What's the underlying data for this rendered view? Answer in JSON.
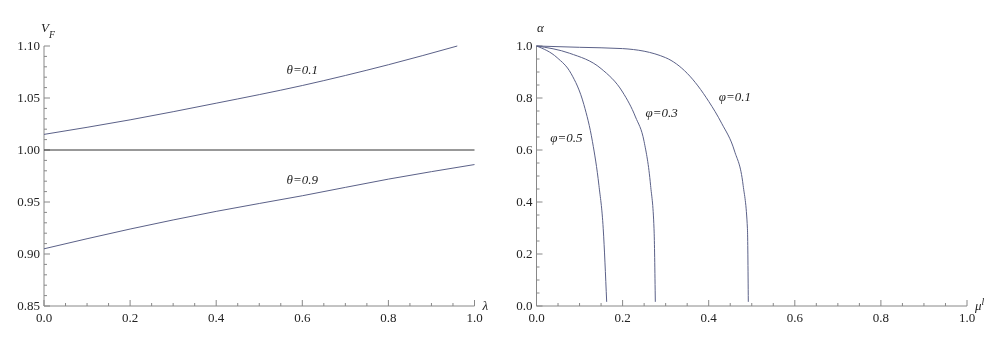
{
  "chart_data": [
    {
      "type": "line",
      "xlabel": "λ",
      "ylabel": "V$_{F}$",
      "xlim": [
        0,
        1
      ],
      "ylim": [
        0.85,
        1.1
      ],
      "xticks": [
        {
          "value": 0,
          "label": "0.0"
        },
        {
          "value": 0.05,
          "label": null
        },
        {
          "value": 0.1,
          "label": null
        },
        {
          "value": 0.15,
          "label": null
        },
        {
          "value": 0.2,
          "label": "0.2"
        },
        {
          "value": 0.25,
          "label": null
        },
        {
          "value": 0.3,
          "label": null
        },
        {
          "value": 0.35,
          "label": null
        },
        {
          "value": 0.4,
          "label": "0.4"
        },
        {
          "value": 0.45,
          "label": null
        },
        {
          "value": 0.5,
          "label": null
        },
        {
          "value": 0.55,
          "label": null
        },
        {
          "value": 0.6,
          "label": "0.6"
        },
        {
          "value": 0.65,
          "label": null
        },
        {
          "value": 0.7,
          "label": null
        },
        {
          "value": 0.75,
          "label": null
        },
        {
          "value": 0.8,
          "label": "0.8"
        },
        {
          "value": 0.85,
          "label": null
        },
        {
          "value": 0.9,
          "label": null
        },
        {
          "value": 0.95,
          "label": null
        },
        {
          "value": 1,
          "label": "1.0"
        }
      ],
      "yticks": [
        {
          "value": 0.85,
          "label": "0.85"
        },
        {
          "value": 0.86,
          "label": null
        },
        {
          "value": 0.87,
          "label": null
        },
        {
          "value": 0.88,
          "label": null
        },
        {
          "value": 0.89,
          "label": null
        },
        {
          "value": 0.9,
          "label": "0.90"
        },
        {
          "value": 0.91,
          "label": null
        },
        {
          "value": 0.92,
          "label": null
        },
        {
          "value": 0.93,
          "label": null
        },
        {
          "value": 0.94,
          "label": null
        },
        {
          "value": 0.95,
          "label": "0.95"
        },
        {
          "value": 0.96,
          "label": null
        },
        {
          "value": 0.97,
          "label": null
        },
        {
          "value": 0.98,
          "label": null
        },
        {
          "value": 0.99,
          "label": null
        },
        {
          "value": 1,
          "label": "1.00"
        },
        {
          "value": 1.01,
          "label": null
        },
        {
          "value": 1.02,
          "label": null
        },
        {
          "value": 1.03,
          "label": null
        },
        {
          "value": 1.04,
          "label": null
        },
        {
          "value": 1.05,
          "label": "1.05"
        },
        {
          "value": 1.06,
          "label": null
        },
        {
          "value": 1.07,
          "label": null
        },
        {
          "value": 1.08,
          "label": null
        },
        {
          "value": 1.09,
          "label": null
        },
        {
          "value": 1.1,
          "label": "1.10"
        }
      ],
      "grid": false,
      "legend": false,
      "marker": "none",
      "line_style": "solid",
      "series": [
        {
          "name": "θ=0.1",
          "color": "#5b6188",
          "x": [
            0,
            0.2,
            0.4,
            0.6,
            0.8,
            0.96
          ],
          "values": [
            1.015,
            1.029,
            1.045,
            1.062,
            1.082,
            1.1
          ]
        },
        {
          "color": "#333333",
          "x": [
            0,
            1
          ],
          "values": [
            1,
            1
          ]
        },
        {
          "name": "θ=0.9",
          "color": "#5b6188",
          "x": [
            0,
            0.2,
            0.4,
            0.6,
            0.8,
            1
          ],
          "values": [
            0.905,
            0.924,
            0.941,
            0.956,
            0.972,
            0.986
          ]
        }
      ]
    },
    {
      "type": "line",
      "xlabel": "μ$^{l}$",
      "ylabel": "α",
      "xlim": [
        0,
        1
      ],
      "ylim": [
        0,
        1
      ],
      "xticks": [
        {
          "value": 0,
          "label": "0.0"
        },
        {
          "value": 0.05,
          "label": null
        },
        {
          "value": 0.1,
          "label": null
        },
        {
          "value": 0.15,
          "label": null
        },
        {
          "value": 0.2,
          "label": "0.2"
        },
        {
          "value": 0.25,
          "label": null
        },
        {
          "value": 0.3,
          "label": null
        },
        {
          "value": 0.35,
          "label": null
        },
        {
          "value": 0.4,
          "label": "0.4"
        },
        {
          "value": 0.45,
          "label": null
        },
        {
          "value": 0.5,
          "label": null
        },
        {
          "value": 0.55,
          "label": null
        },
        {
          "value": 0.6,
          "label": "0.6"
        },
        {
          "value": 0.65,
          "label": null
        },
        {
          "value": 0.7,
          "label": null
        },
        {
          "value": 0.75,
          "label": null
        },
        {
          "value": 0.8,
          "label": "0.8"
        },
        {
          "value": 0.85,
          "label": null
        },
        {
          "value": 0.9,
          "label": null
        },
        {
          "value": 0.95,
          "label": null
        },
        {
          "value": 1,
          "label": "1.0"
        }
      ],
      "yticks": [
        {
          "value": 0,
          "label": "0.0"
        },
        {
          "value": 0.05,
          "label": null
        },
        {
          "value": 0.1,
          "label": null
        },
        {
          "value": 0.15,
          "label": null
        },
        {
          "value": 0.2,
          "label": "0.2"
        },
        {
          "value": 0.25,
          "label": null
        },
        {
          "value": 0.3,
          "label": null
        },
        {
          "value": 0.35,
          "label": null
        },
        {
          "value": 0.4,
          "label": "0.4"
        },
        {
          "value": 0.45,
          "label": null
        },
        {
          "value": 0.5,
          "label": null
        },
        {
          "value": 0.55,
          "label": null
        },
        {
          "value": 0.6,
          "label": "0.6"
        },
        {
          "value": 0.65,
          "label": null
        },
        {
          "value": 0.7,
          "label": null
        },
        {
          "value": 0.75,
          "label": null
        },
        {
          "value": 0.8,
          "label": "0.8"
        },
        {
          "value": 0.85,
          "label": null
        },
        {
          "value": 0.9,
          "label": null
        },
        {
          "value": 0.95,
          "label": null
        },
        {
          "value": 1,
          "label": "1.0"
        }
      ],
      "grid": false,
      "legend": false,
      "marker": "none",
      "line_style": "solid",
      "series": [
        {
          "name": "φ=0.1",
          "color": "#5b6188",
          "x": [
            0,
            0.1,
            0.2,
            0.3,
            0.35,
            0.4,
            0.43,
            0.46,
            0.48,
            0.49,
            0.492
          ],
          "values": [
            1,
            0.995,
            0.99,
            0.955,
            0.895,
            0.787,
            0.703,
            0.596,
            0.464,
            0.297,
            0.016
          ]
        },
        {
          "name": "φ=0.3",
          "color": "#5b6188",
          "x": [
            0,
            0.077,
            0.15,
            0.2,
            0.23,
            0.25,
            0.265,
            0.273,
            0.276
          ],
          "values": [
            1,
            0.972,
            0.913,
            0.823,
            0.727,
            0.632,
            0.464,
            0.297,
            0.016
          ]
        },
        {
          "name": "φ=0.5",
          "color": "#5b6188",
          "x": [
            0,
            0.048,
            0.08,
            0.11,
            0.13,
            0.145,
            0.155,
            0.163
          ],
          "values": [
            1,
            0.955,
            0.895,
            0.775,
            0.632,
            0.464,
            0.297,
            0.016
          ]
        }
      ]
    }
  ]
}
